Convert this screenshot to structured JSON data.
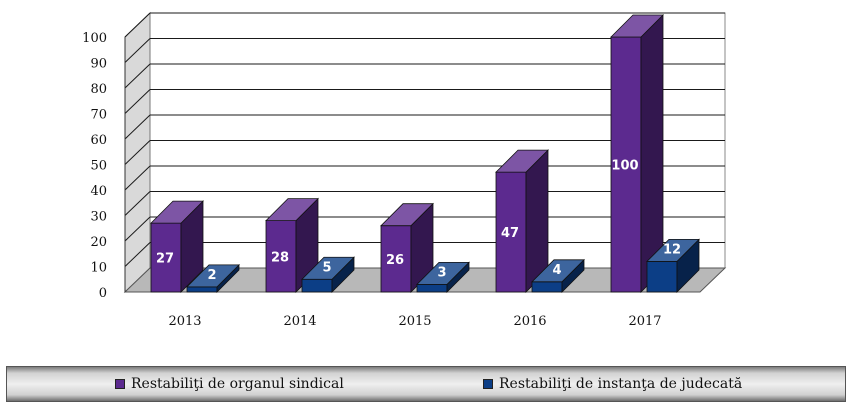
{
  "chart_data": {
    "type": "bar",
    "categories": [
      "2013",
      "2014",
      "2015",
      "2016",
      "2017"
    ],
    "series": [
      {
        "name": "Restabiliţi de organul sindical",
        "values": [
          27,
          28,
          26,
          47,
          100
        ],
        "color": "#5c2a8f",
        "label_color": "#ffffff"
      },
      {
        "name": "Restabiliţi de instanţa de judecată",
        "values": [
          2,
          5,
          3,
          4,
          12
        ],
        "color": "#0c3e86",
        "label_color": "#ffffff"
      }
    ],
    "y_ticks": [
      "0",
      "10",
      "20",
      "30",
      "40",
      "50",
      "60",
      "70",
      "80",
      "90",
      "100"
    ],
    "ylim": [
      0,
      100
    ],
    "grid": true,
    "three_d": true,
    "legend_position": "bottom",
    "title": "",
    "xlabel": "",
    "ylabel": ""
  }
}
